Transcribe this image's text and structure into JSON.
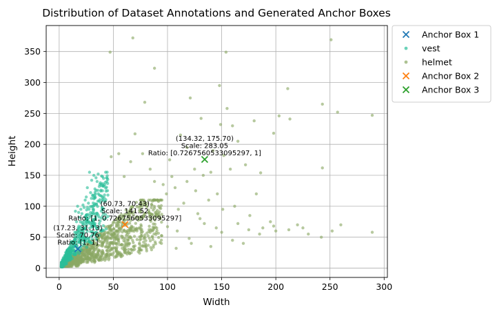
{
  "chart_data": {
    "type": "scatter",
    "title": "Distribution of Dataset Annotations and Generated Anchor Boxes",
    "xlabel": "Width",
    "ylabel": "Height",
    "xlim": [
      -12,
      303
    ],
    "ylim": [
      -15,
      392
    ],
    "xticks": [
      0,
      50,
      100,
      150,
      200,
      250,
      300
    ],
    "xtick_labels": [
      "0",
      "50",
      "100",
      "150",
      "200",
      "250",
      "300"
    ],
    "yticks": [
      0,
      50,
      100,
      150,
      200,
      250,
      300,
      350
    ],
    "ytick_labels": [
      "0",
      "50",
      "100",
      "150",
      "200",
      "250",
      "300",
      "350"
    ],
    "grid": true,
    "legend_position": "outside-right",
    "series": [
      {
        "name": "vest",
        "kind": "points",
        "color": "#2bbf9a",
        "cluster": {
          "approx_count": 500,
          "x_range": [
            2,
            45
          ],
          "y_range": [
            2,
            155
          ],
          "slope_min": 1.4,
          "slope_max": 3.8
        },
        "points": [
          [
            28,
            155
          ],
          [
            32,
            150
          ],
          [
            36,
            152
          ],
          [
            40,
            148
          ],
          [
            35,
            140
          ],
          [
            30,
            142
          ],
          [
            38,
            138
          ],
          [
            42,
            135
          ],
          [
            33,
            128
          ],
          [
            37,
            132
          ],
          [
            26,
            130
          ],
          [
            29,
            122
          ],
          [
            40,
            125
          ],
          [
            45,
            118
          ],
          [
            24,
            110
          ],
          [
            22,
            102
          ],
          [
            20,
            95
          ],
          [
            18,
            90
          ],
          [
            25,
            115
          ],
          [
            31,
            118
          ],
          [
            27,
            105
          ],
          [
            44,
            140
          ],
          [
            34,
            146
          ],
          [
            23,
            98
          ],
          [
            19,
            82
          ],
          [
            16,
            75
          ],
          [
            21,
            88
          ],
          [
            17,
            100
          ],
          [
            15,
            92
          ]
        ]
      },
      {
        "name": "helmet",
        "kind": "points",
        "color": "#8aa864",
        "cluster": {
          "approx_count": 1100,
          "x_range": [
            3,
            95
          ],
          "y_range": [
            3,
            110
          ],
          "slope_min": 0.35,
          "slope_max": 1.5
        },
        "points": [
          [
            68,
            372
          ],
          [
            47,
            349
          ],
          [
            154,
            349
          ],
          [
            251,
            369
          ],
          [
            88,
            323
          ],
          [
            148,
            295
          ],
          [
            79,
            268
          ],
          [
            155,
            258
          ],
          [
            121,
            275
          ],
          [
            211,
            290
          ],
          [
            243,
            265
          ],
          [
            257,
            252
          ],
          [
            289,
            247
          ],
          [
            70,
            217
          ],
          [
            112,
            215
          ],
          [
            131,
            242
          ],
          [
            149,
            232
          ],
          [
            160,
            230
          ],
          [
            180,
            238
          ],
          [
            203,
            246
          ],
          [
            213,
            241
          ],
          [
            198,
            218
          ],
          [
            165,
            205
          ],
          [
            142,
            190
          ],
          [
            118,
            195
          ],
          [
            102,
            175
          ],
          [
            125,
            160
          ],
          [
            140,
            155
          ],
          [
            152,
            182
          ],
          [
            172,
            167
          ],
          [
            186,
            154
          ],
          [
            104,
            148
          ],
          [
            118,
            140
          ],
          [
            126,
            125
          ],
          [
            138,
            110
          ],
          [
            151,
            95
          ],
          [
            165,
            72
          ],
          [
            175,
            62
          ],
          [
            188,
            65
          ],
          [
            198,
            68
          ],
          [
            212,
            62
          ],
          [
            225,
            65
          ],
          [
            242,
            50
          ],
          [
            243,
            162
          ],
          [
            289,
            58
          ],
          [
            260,
            70
          ],
          [
            130,
            80
          ],
          [
            110,
            95
          ],
          [
            99,
            120
          ],
          [
            115,
            105
          ],
          [
            160,
            45
          ],
          [
            170,
            40
          ],
          [
            185,
            55
          ],
          [
            145,
            65
          ],
          [
            195,
            75
          ],
          [
            100,
            67
          ],
          [
            92,
            100
          ],
          [
            96,
            135
          ],
          [
            84,
            160
          ],
          [
            77,
            185
          ],
          [
            60,
            148
          ],
          [
            66,
            172
          ],
          [
            88,
            140
          ],
          [
            107,
            130
          ],
          [
            133,
            150
          ],
          [
            146,
            120
          ],
          [
            162,
            100
          ],
          [
            176,
            85
          ],
          [
            120,
            48
          ],
          [
            140,
            35
          ],
          [
            128,
            88
          ],
          [
            109,
            60
          ],
          [
            134,
            72
          ],
          [
            150,
            58
          ],
          [
            122,
            40
          ],
          [
            108,
            32
          ],
          [
            55,
            185
          ],
          [
            48,
            180
          ],
          [
            158,
            160
          ],
          [
            182,
            120
          ],
          [
            200,
            60
          ],
          [
            220,
            70
          ],
          [
            252,
            60
          ],
          [
            230,
            55
          ]
        ]
      },
      {
        "name": "Anchor Box 1",
        "kind": "anchor",
        "marker": "x",
        "color": "#1f77b4",
        "x": 17.23,
        "y": 31.13,
        "label_lines": [
          "(17.23, 31.13)",
          "Scale: 70.76",
          "Ratio: [1, 1]"
        ]
      },
      {
        "name": "Anchor Box 2",
        "kind": "anchor",
        "marker": "x",
        "color": "#ff7f0e",
        "x": 60.73,
        "y": 70.43,
        "label_lines": [
          "(60.73, 70.43)",
          "Scale: 141.52",
          "Ratio: [1, 0.7267560533095297]"
        ]
      },
      {
        "name": "Anchor Box 3",
        "kind": "anchor",
        "marker": "x",
        "color": "#2ca02c",
        "x": 134.32,
        "y": 175.7,
        "label_lines": [
          "(134.32, 175.70)",
          "Scale: 283.05",
          "Ratio: [0.7267560533095297, 1]"
        ]
      }
    ]
  },
  "legend": {
    "items": [
      {
        "label": "Anchor Box 1",
        "symbol": "x",
        "color": "#1f77b4"
      },
      {
        "label": "vest",
        "symbol": "dot",
        "color": "#2bbf9a"
      },
      {
        "label": "helmet",
        "symbol": "dot",
        "color": "#8aa864"
      },
      {
        "label": "Anchor Box 2",
        "symbol": "x",
        "color": "#ff7f0e"
      },
      {
        "label": "Anchor Box 3",
        "symbol": "x",
        "color": "#2ca02c"
      }
    ]
  }
}
